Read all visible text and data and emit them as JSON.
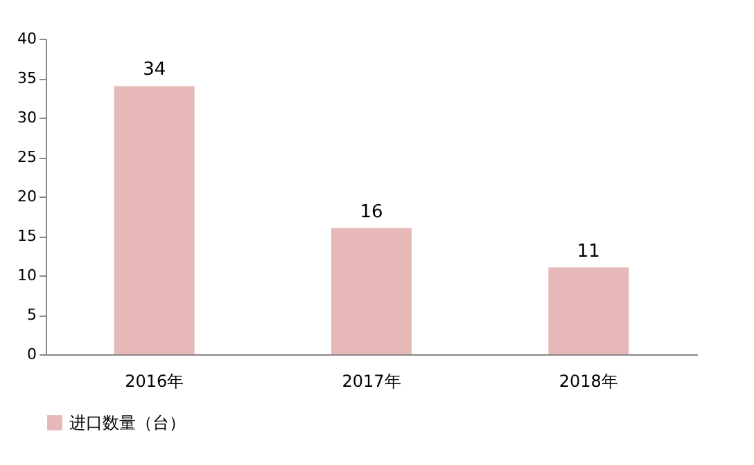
{
  "chart_data": {
    "type": "bar",
    "categories": [
      "2016年",
      "2017年",
      "2018年"
    ],
    "series": [
      {
        "name": "进口数量（台）",
        "color": "#e6b9b8",
        "values": [
          34,
          16,
          11
        ]
      }
    ],
    "ylim": [
      0,
      40
    ],
    "yticks": [
      0,
      5,
      10,
      15,
      20,
      25,
      30,
      35,
      40
    ],
    "data_labels": true,
    "legend": "bottom"
  }
}
